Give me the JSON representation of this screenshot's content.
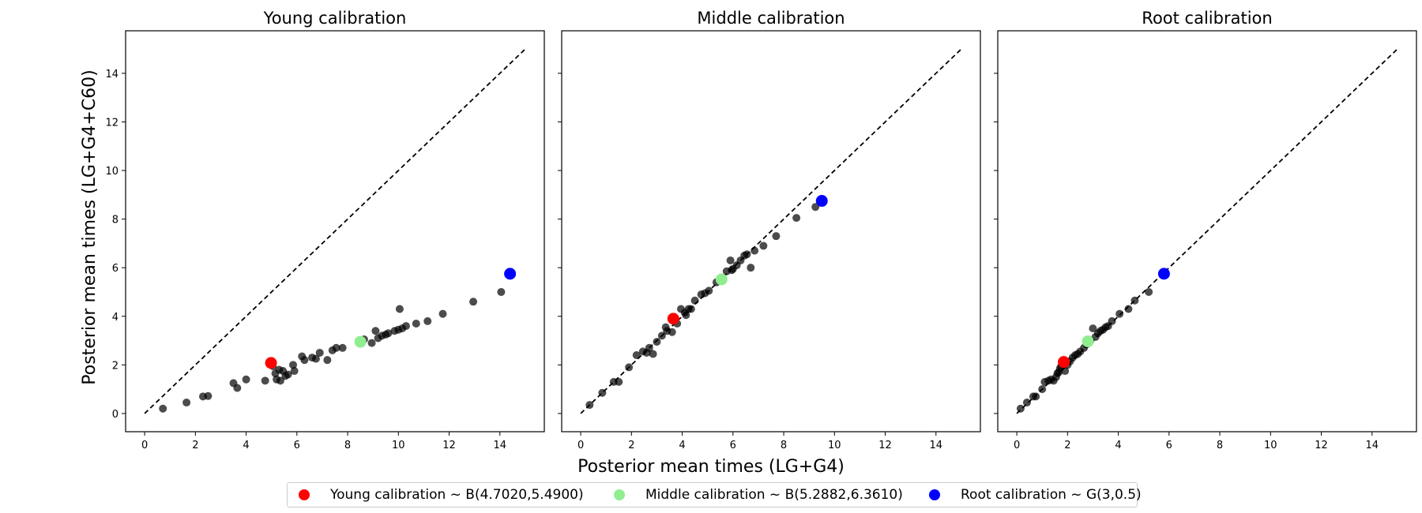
{
  "figure": {
    "xlabel": "Posterior mean times (LG+G4)",
    "ylabel": "Posterior mean times (LG+G4+C60)"
  },
  "legend": {
    "placement": "bottom-center",
    "items": [
      {
        "label": "Young calibration ~ B(4.7020,5.4900)",
        "color": "#ff0000"
      },
      {
        "label": "Middle calibration ~ B(5.2882,6.3610)",
        "color": "#90ee90"
      },
      {
        "label": "Root calibration ~ G(3,0.5)",
        "color": "#0000ff"
      }
    ]
  },
  "chart_data": [
    {
      "type": "scatter",
      "title": "Young calibration",
      "xlim": [
        -0.75,
        15.75
      ],
      "ylim": [
        -0.75,
        15.75
      ],
      "xticks": [
        0,
        2,
        4,
        6,
        8,
        10,
        12,
        14
      ],
      "yticks": [
        0,
        2,
        4,
        6,
        8,
        10,
        12,
        14
      ],
      "grid": false,
      "reference_line": {
        "style": "dashed",
        "color": "#000000",
        "from": [
          0,
          0
        ],
        "to": [
          15,
          15
        ]
      },
      "series": [
        {
          "color": "#000000",
          "opacity": 0.7,
          "x": [
            0.72,
            1.65,
            2.3,
            2.5,
            3.5,
            3.65,
            4.0,
            4.75,
            5.05,
            5.15,
            5.2,
            5.3,
            5.35,
            5.45,
            5.55,
            5.65,
            5.85,
            5.9,
            6.2,
            6.3,
            6.6,
            6.75,
            6.9,
            7.2,
            7.4,
            7.55,
            7.8,
            8.65,
            8.95,
            9.1,
            9.2,
            9.35,
            9.5,
            9.6,
            9.85,
            10.0,
            10.05,
            10.15,
            10.3,
            10.7,
            11.15,
            11.75,
            12.95,
            14.05
          ],
          "y": [
            0.2,
            0.45,
            0.7,
            0.72,
            1.25,
            1.05,
            1.4,
            1.35,
            1.95,
            1.65,
            1.4,
            1.8,
            1.35,
            1.75,
            1.55,
            1.6,
            2.0,
            1.75,
            2.35,
            2.2,
            2.3,
            2.25,
            2.5,
            2.2,
            2.6,
            2.7,
            2.7,
            3.05,
            2.9,
            3.4,
            3.1,
            3.2,
            3.25,
            3.3,
            3.4,
            3.45,
            4.3,
            3.5,
            3.6,
            3.7,
            3.8,
            4.1,
            4.6,
            5.0
          ]
        },
        {
          "name": "Young calibration",
          "color": "#ff0000",
          "x": [
            4.98
          ],
          "y": [
            2.08
          ]
        },
        {
          "name": "Middle calibration",
          "color": "#90ee90",
          "x": [
            8.5
          ],
          "y": [
            2.95
          ]
        },
        {
          "name": "Root calibration",
          "color": "#0000ff",
          "x": [
            14.4
          ],
          "y": [
            5.75
          ]
        }
      ]
    },
    {
      "type": "scatter",
      "title": "Middle calibration",
      "xlim": [
        -0.75,
        15.75
      ],
      "ylim": [
        -0.75,
        15.75
      ],
      "xticks": [
        0,
        2,
        4,
        6,
        8,
        10,
        12,
        14
      ],
      "yticks": [
        0,
        2,
        4,
        6,
        8,
        10,
        12,
        14
      ],
      "grid": false,
      "reference_line": {
        "style": "dashed",
        "color": "#000000",
        "from": [
          0,
          0
        ],
        "to": [
          15,
          15
        ]
      },
      "series": [
        {
          "color": "#000000",
          "opacity": 0.7,
          "x": [
            0.35,
            0.85,
            1.3,
            1.5,
            1.9,
            2.2,
            2.45,
            2.6,
            2.7,
            2.85,
            3.0,
            3.2,
            3.35,
            3.4,
            3.6,
            3.8,
            3.95,
            4.1,
            4.15,
            4.25,
            4.35,
            4.5,
            4.75,
            4.9,
            5.05,
            5.35,
            5.6,
            5.75,
            5.9,
            5.95,
            6.0,
            6.15,
            6.3,
            6.45,
            6.55,
            6.7,
            6.85,
            7.2,
            7.7,
            8.5,
            9.25
          ],
          "y": [
            0.35,
            0.85,
            1.3,
            1.3,
            1.9,
            2.4,
            2.55,
            2.5,
            2.7,
            2.45,
            2.95,
            3.2,
            3.55,
            3.4,
            3.35,
            3.7,
            4.3,
            4.15,
            4.05,
            4.3,
            4.3,
            4.65,
            4.9,
            4.95,
            5.05,
            5.4,
            5.5,
            5.85,
            6.3,
            5.9,
            5.95,
            6.1,
            6.3,
            6.5,
            6.55,
            6.0,
            6.7,
            6.9,
            7.3,
            8.05,
            8.5
          ]
        },
        {
          "name": "Young calibration",
          "color": "#ff0000",
          "x": [
            3.65
          ],
          "y": [
            3.9
          ]
        },
        {
          "name": "Middle calibration",
          "color": "#90ee90",
          "x": [
            5.55
          ],
          "y": [
            5.52
          ]
        },
        {
          "name": "Root calibration",
          "color": "#0000ff",
          "x": [
            9.5
          ],
          "y": [
            8.75
          ]
        }
      ]
    },
    {
      "type": "scatter",
      "title": "Root calibration",
      "xlim": [
        -0.75,
        15.75
      ],
      "ylim": [
        -0.75,
        15.75
      ],
      "xticks": [
        0,
        2,
        4,
        6,
        8,
        10,
        12,
        14
      ],
      "yticks": [
        0,
        2,
        4,
        6,
        8,
        10,
        12,
        14
      ],
      "grid": false,
      "reference_line": {
        "style": "dashed",
        "color": "#000000",
        "from": [
          0,
          0
        ],
        "to": [
          15,
          15
        ]
      },
      "series": [
        {
          "color": "#000000",
          "opacity": 0.7,
          "x": [
            0.15,
            0.4,
            0.65,
            0.75,
            1.0,
            1.1,
            1.25,
            1.35,
            1.45,
            1.55,
            1.6,
            1.65,
            1.7,
            1.75,
            1.9,
            2.0,
            2.1,
            2.2,
            2.3,
            2.4,
            2.5,
            2.65,
            2.75,
            2.9,
            3.0,
            3.1,
            3.2,
            3.3,
            3.4,
            3.5,
            3.6,
            3.75,
            4.05,
            4.4,
            4.65,
            5.2
          ],
          "y": [
            0.2,
            0.45,
            0.7,
            0.7,
            1.0,
            1.3,
            1.35,
            1.4,
            1.35,
            1.5,
            1.65,
            1.7,
            1.85,
            1.95,
            1.75,
            2.0,
            2.15,
            2.3,
            2.4,
            2.45,
            2.55,
            2.7,
            2.85,
            3.0,
            3.5,
            3.15,
            3.3,
            3.4,
            3.45,
            3.55,
            3.6,
            3.8,
            4.1,
            4.3,
            4.65,
            5.0
          ]
        },
        {
          "name": "Young calibration",
          "color": "#ff0000",
          "x": [
            1.85
          ],
          "y": [
            2.12
          ]
        },
        {
          "name": "Middle calibration",
          "color": "#90ee90",
          "x": [
            2.8
          ],
          "y": [
            2.97
          ]
        },
        {
          "name": "Root calibration",
          "color": "#0000ff",
          "x": [
            5.8
          ],
          "y": [
            5.75
          ]
        }
      ]
    }
  ]
}
